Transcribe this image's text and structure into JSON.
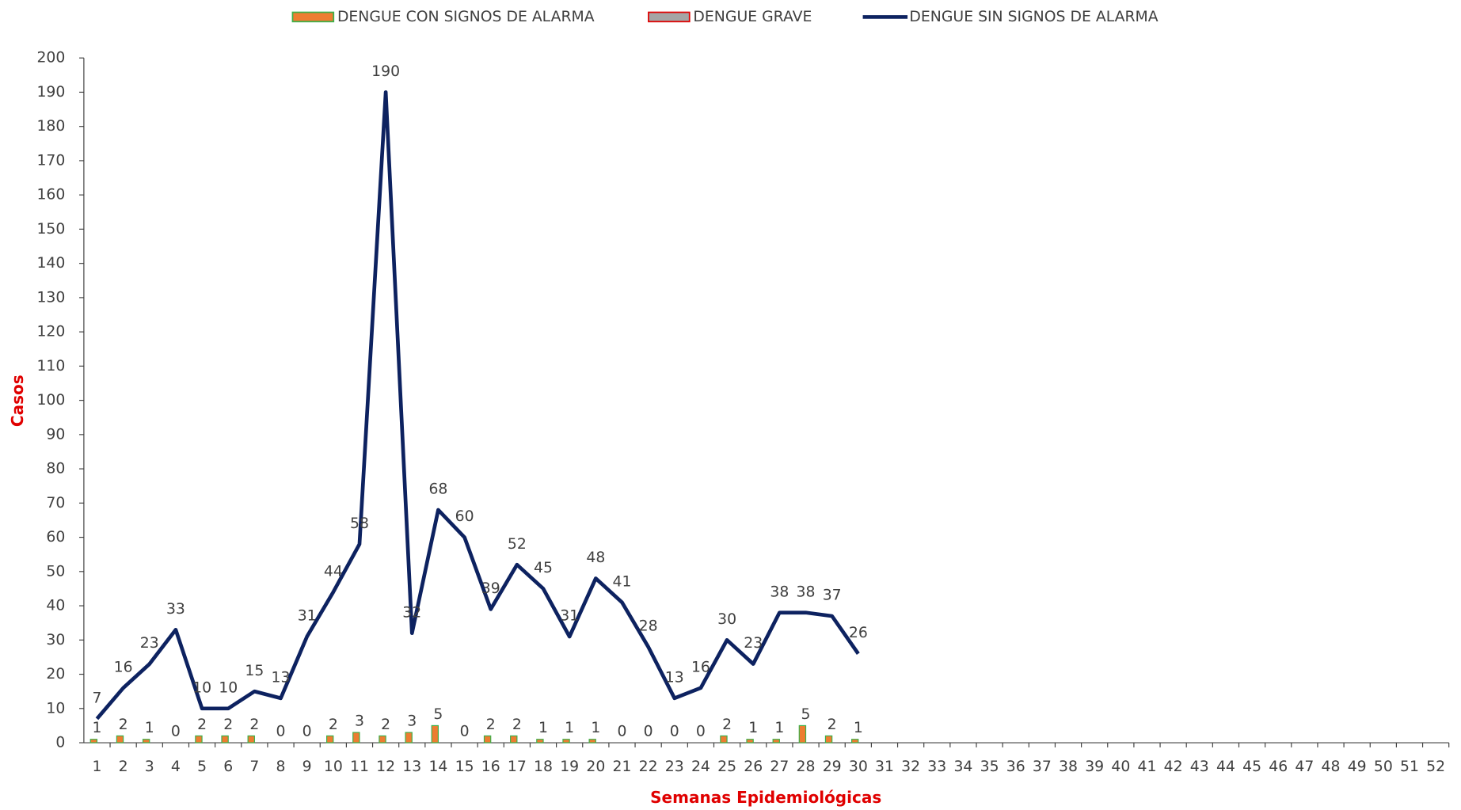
{
  "chart_data": {
    "type": "bar-line",
    "xlabel": "Semanas  Epidemiológicas",
    "ylabel": "Casos",
    "categories": [
      1,
      2,
      3,
      4,
      5,
      6,
      7,
      8,
      9,
      10,
      11,
      12,
      13,
      14,
      15,
      16,
      17,
      18,
      19,
      20,
      21,
      22,
      23,
      24,
      25,
      26,
      27,
      28,
      29,
      30,
      31,
      32,
      33,
      34,
      35,
      36,
      37,
      38,
      39,
      40,
      41,
      42,
      43,
      44,
      45,
      46,
      47,
      48,
      49,
      50,
      51,
      52
    ],
    "ylim": [
      0,
      200
    ],
    "yticks": [
      0,
      10,
      20,
      30,
      40,
      50,
      60,
      70,
      80,
      90,
      100,
      110,
      120,
      130,
      140,
      150,
      160,
      170,
      180,
      190,
      200
    ],
    "grid": false,
    "legend": "top",
    "series": [
      {
        "name": "DENGUE CON SIGNOS DE ALARMA",
        "type": "bar",
        "color": "#ed7d31",
        "edgecolor": "#3cb04a",
        "values": [
          1,
          2,
          1,
          0,
          2,
          2,
          2,
          0,
          0,
          2,
          3,
          2,
          3,
          5,
          0,
          2,
          2,
          1,
          1,
          1,
          0,
          0,
          0,
          0,
          2,
          1,
          1,
          5,
          2,
          1,
          null,
          null,
          null,
          null,
          null,
          null,
          null,
          null,
          null,
          null,
          null,
          null,
          null,
          null,
          null,
          null,
          null,
          null,
          null,
          null,
          null,
          null
        ]
      },
      {
        "name": "DENGUE GRAVE",
        "type": "bar",
        "color": "#a5a5a5",
        "edgecolor": "#e00000",
        "values": [
          null,
          null,
          null,
          null,
          null,
          null,
          null,
          null,
          null,
          null,
          null,
          null,
          null,
          null,
          null,
          null,
          null,
          null,
          null,
          null,
          null,
          null,
          null,
          null,
          null,
          null,
          null,
          null,
          null,
          null,
          null,
          null,
          null,
          null,
          null,
          null,
          null,
          null,
          null,
          null,
          null,
          null,
          null,
          null,
          null,
          null,
          null,
          null,
          null,
          null,
          null,
          null
        ]
      },
      {
        "name": "DENGUE SIN SIGNOS DE ALARMA",
        "type": "line",
        "color": "#0d2260",
        "values": [
          7,
          16,
          23,
          33,
          10,
          10,
          15,
          13,
          31,
          44,
          58,
          190,
          32,
          68,
          60,
          39,
          52,
          45,
          31,
          48,
          41,
          28,
          13,
          16,
          30,
          23,
          38,
          38,
          37,
          26,
          null,
          null,
          null,
          null,
          null,
          null,
          null,
          null,
          null,
          null,
          null,
          null,
          null,
          null,
          null,
          null,
          null,
          null,
          null,
          null,
          null,
          null
        ]
      }
    ]
  }
}
